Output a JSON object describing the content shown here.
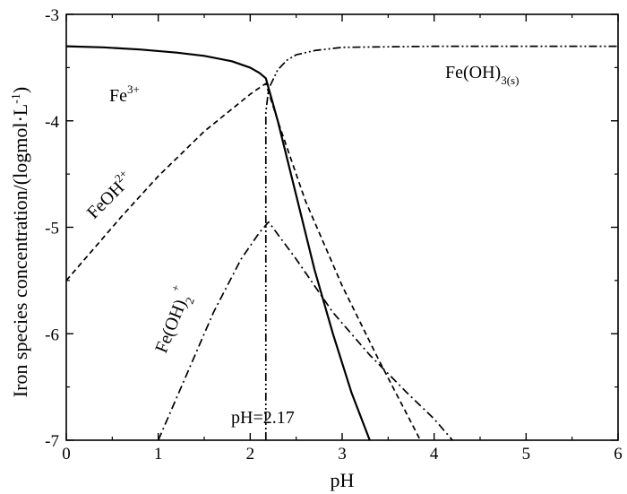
{
  "chart_data": {
    "type": "line",
    "xlabel": "pH",
    "ylabel": "Iron species concentration/(logmol·L",
    "ylabel_sup": "-1",
    "ylabel_close": ")",
    "xlim": [
      0,
      6
    ],
    "ylim": [
      -7,
      -3
    ],
    "xticks": [
      0,
      1,
      2,
      3,
      4,
      5,
      6
    ],
    "yticks": [
      -3,
      -4,
      -5,
      -6,
      -7
    ],
    "grid": false,
    "series": [
      {
        "key": "fe3",
        "label": "Fe",
        "label_sup": "3+",
        "style": "solid",
        "x": [
          0,
          0.4,
          0.8,
          1.2,
          1.5,
          1.8,
          2.0,
          2.1,
          2.17,
          2.3,
          2.5,
          2.7,
          2.9,
          3.1,
          3.3
        ],
        "y": [
          -3.3,
          -3.31,
          -3.33,
          -3.36,
          -3.39,
          -3.44,
          -3.5,
          -3.55,
          -3.6,
          -4.0,
          -4.7,
          -5.4,
          -6.0,
          -6.55,
          -7.0
        ]
      },
      {
        "key": "feoh2",
        "label": "FeOH",
        "label_sup": "2+",
        "style": "dash",
        "x": [
          0,
          0.3,
          0.6,
          1.0,
          1.5,
          2.0,
          2.1,
          2.17,
          2.3,
          2.6,
          3.0,
          3.4,
          3.7,
          3.85
        ],
        "y": [
          -5.5,
          -5.2,
          -4.9,
          -4.52,
          -4.1,
          -3.75,
          -3.69,
          -3.65,
          -4.0,
          -4.75,
          -5.55,
          -6.25,
          -6.75,
          -7.0
        ]
      },
      {
        "key": "feoh2p",
        "label": "Fe(OH)",
        "label_sub": "2",
        "label_sup": "+",
        "style": "dashdot",
        "x": [
          1.0,
          1.3,
          1.6,
          1.9,
          2.1,
          2.2,
          2.5,
          2.9,
          3.3,
          3.7,
          4.0,
          4.2
        ],
        "y": [
          -7.0,
          -6.4,
          -5.8,
          -5.3,
          -5.05,
          -4.95,
          -5.3,
          -5.8,
          -6.2,
          -6.55,
          -6.8,
          -7.0
        ]
      },
      {
        "key": "feoh3",
        "label": "Fe(OH)",
        "label_sub": "3(s)",
        "style": "dashdotdot",
        "x": [
          2.17,
          2.17,
          2.2,
          2.3,
          2.4,
          2.5,
          2.7,
          3.0,
          4.0,
          5.0,
          6.0
        ],
        "y": [
          -7.0,
          -3.92,
          -3.7,
          -3.52,
          -3.43,
          -3.38,
          -3.34,
          -3.31,
          -3.3,
          -3.3,
          -3.3
        ]
      }
    ],
    "annotations": [
      {
        "key": "ph_marker",
        "text": "pH=2.17",
        "x": 2.17
      }
    ]
  }
}
